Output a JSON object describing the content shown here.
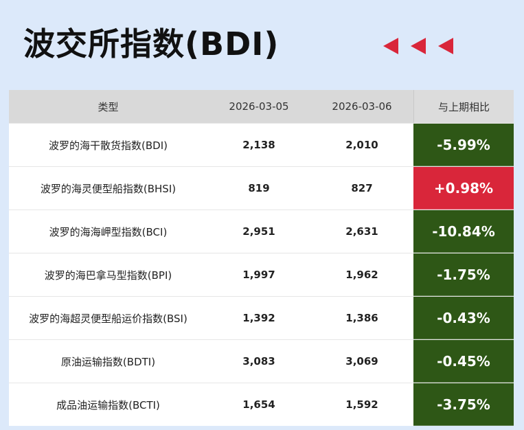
{
  "header": {
    "title": "波交所指数(BDI)"
  },
  "table": {
    "columns": [
      "类型",
      "2026-03-05",
      "2026-03-06",
      "与上期相比"
    ],
    "rows": [
      [
        "波罗的海干散货指数(BDI)",
        "2,138",
        "2,010",
        "-5.99%"
      ],
      [
        "波罗的海灵便型船指数(BHSI)",
        "819",
        "827",
        "+0.98%"
      ],
      [
        "波罗的海海岬型指数(BCI)",
        "2,951",
        "2,631",
        "-10.84%"
      ],
      [
        "波罗的海巴拿马型指数(BPI)",
        "1,997",
        "1,962",
        "-1.75%"
      ],
      [
        "波罗的海超灵便型船运价指数(BSI)",
        "1,392",
        "1,386",
        "-0.43%"
      ],
      [
        "原油运输指数(BDTI)",
        "3,083",
        "3,069",
        "-0.45%"
      ],
      [
        "成品油运输指数(BCTI)",
        "1,654",
        "1,592",
        "-3.75%"
      ]
    ],
    "change_colors": [
      "#2e5716",
      "#d9263a",
      "#2e5716",
      "#2e5716",
      "#2e5716",
      "#2e5716",
      "#2e5716"
    ]
  }
}
